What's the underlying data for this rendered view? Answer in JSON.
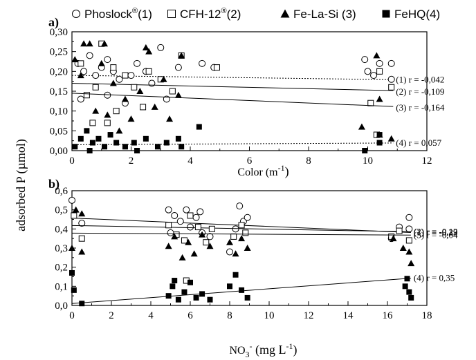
{
  "legend": [
    {
      "label": "Phoslock",
      "sup": "®",
      "suffix": "(1)",
      "marker": "circle-open"
    },
    {
      "label": "CFH-12",
      "sup": "®",
      "suffix": "(2)",
      "marker": "square-open"
    },
    {
      "label": "Fe-La-Si",
      "sup": "",
      "suffix": " (3)",
      "marker": "triangle-filled"
    },
    {
      "label": "FeHQ",
      "sup": "",
      "suffix": "(4)",
      "marker": "square-filled"
    }
  ],
  "ylabel": "adsorbed P (µmol)",
  "chart_data": [
    {
      "panel": "a)",
      "type": "scatter",
      "xlabel": "Color (m",
      "xlabel_sup": "-1",
      "xlabel_end": ")",
      "xlim": [
        0,
        12
      ],
      "ylim": [
        0,
        0.3
      ],
      "xticks": [
        "0",
        "2",
        "4",
        "6",
        "8",
        "10",
        "12"
      ],
      "yticks": [
        "0,00",
        "0,05",
        "0,10",
        "0,15",
        "0,20",
        "0,25",
        "0,30"
      ],
      "series": [
        {
          "name": "Phoslock®(1)",
          "points": [
            [
              0.2,
              0.22
            ],
            [
              0.4,
              0.2
            ],
            [
              0.6,
              0.24
            ],
            [
              0.8,
              0.19
            ],
            [
              1.0,
              0.21
            ],
            [
              1.2,
              0.23
            ],
            [
              1.4,
              0.2
            ],
            [
              1.6,
              0.18
            ],
            [
              1.8,
              0.12
            ],
            [
              2.0,
              0.19
            ],
            [
              2.2,
              0.22
            ],
            [
              2.5,
              0.2
            ],
            [
              2.7,
              0.17
            ],
            [
              3.0,
              0.26
            ],
            [
              3.2,
              0.13
            ],
            [
              3.6,
              0.21
            ],
            [
              4.4,
              0.22
            ],
            [
              4.8,
              0.21
            ],
            [
              9.9,
              0.23
            ],
            [
              10.0,
              0.2
            ],
            [
              10.2,
              0.19
            ],
            [
              10.4,
              0.22
            ],
            [
              10.8,
              0.22
            ],
            [
              10.8,
              0.18
            ],
            [
              0.3,
              0.13
            ],
            [
              1.2,
              0.14
            ]
          ],
          "fit": {
            "slope": -0.001,
            "intercept": 0.19,
            "dashed": true
          },
          "r_label": "(1) r = -0,042"
        },
        {
          "name": "CFH-12®(2)",
          "points": [
            [
              0.3,
              0.22
            ],
            [
              0.5,
              0.14
            ],
            [
              0.8,
              0.16
            ],
            [
              1.0,
              0.27
            ],
            [
              1.2,
              0.07
            ],
            [
              1.5,
              0.1
            ],
            [
              1.8,
              0.19
            ],
            [
              2.1,
              0.16
            ],
            [
              2.4,
              0.11
            ],
            [
              2.6,
              0.2
            ],
            [
              3.0,
              0.18
            ],
            [
              3.4,
              0.15
            ],
            [
              3.7,
              0.24
            ],
            [
              4.9,
              0.21
            ],
            [
              10.1,
              0.12
            ],
            [
              10.3,
              0.04
            ],
            [
              10.4,
              0.2
            ],
            [
              10.8,
              0.16
            ],
            [
              0.7,
              0.07
            ],
            [
              1.4,
              0.21
            ]
          ],
          "fit": {
            "slope": -0.0017,
            "intercept": 0.17
          },
          "r_label": "(2) r = -0,109"
        },
        {
          "name": "Fe-La-Si (3)",
          "points": [
            [
              0.1,
              0.23
            ],
            [
              0.3,
              0.19
            ],
            [
              0.6,
              0.27
            ],
            [
              0.8,
              0.1
            ],
            [
              1.0,
              0.22
            ],
            [
              1.2,
              0.09
            ],
            [
              1.4,
              0.17
            ],
            [
              1.6,
              0.05
            ],
            [
              1.8,
              0.13
            ],
            [
              2.0,
              0.08
            ],
            [
              2.3,
              0.15
            ],
            [
              2.5,
              0.26
            ],
            [
              2.8,
              0.11
            ],
            [
              3.1,
              0.18
            ],
            [
              3.3,
              0.08
            ],
            [
              3.6,
              0.14
            ],
            [
              3.7,
              0.24
            ],
            [
              9.8,
              0.06
            ],
            [
              10.3,
              0.24
            ],
            [
              10.4,
              0.13
            ],
            [
              10.4,
              0.04
            ],
            [
              10.8,
              0.03
            ],
            [
              0.4,
              0.27
            ],
            [
              1.1,
              0.27
            ],
            [
              2.6,
              0.25
            ]
          ],
          "fit": {
            "slope": -0.0031,
            "intercept": 0.145
          },
          "r_label": "(3) r = -0,164"
        },
        {
          "name": "FeHQ(4)",
          "points": [
            [
              0.1,
              0.01
            ],
            [
              0.3,
              0.03
            ],
            [
              0.5,
              0.05
            ],
            [
              0.7,
              0.02
            ],
            [
              0.9,
              0.03
            ],
            [
              1.1,
              0.01
            ],
            [
              1.3,
              0.04
            ],
            [
              1.5,
              0.02
            ],
            [
              1.8,
              0.01
            ],
            [
              2.1,
              0.02
            ],
            [
              2.5,
              0.03
            ],
            [
              2.9,
              0.01
            ],
            [
              3.2,
              0.02
            ],
            [
              3.6,
              0.03
            ],
            [
              3.7,
              0.01
            ],
            [
              4.3,
              0.06
            ],
            [
              9.9,
              0.0
            ],
            [
              10.4,
              0.02
            ],
            [
              10.4,
              0.04
            ],
            [
              0.6,
              0.0
            ],
            [
              2.2,
              0.0
            ]
          ],
          "fit": {
            "slope": 0.0004,
            "intercept": 0.015,
            "dashed": true
          },
          "r_label": "(4) r = 0,057"
        }
      ]
    },
    {
      "panel": "b)",
      "type": "scatter",
      "xlabel": "NO",
      "xlabel_sub": "3",
      "xlabel_sup": "-",
      "xlabel_end": " (mg L",
      "xlabel_sup2": "-1",
      "xlabel_end2": ")",
      "xlim": [
        0,
        18
      ],
      "ylim": [
        0,
        0.6
      ],
      "xticks": [
        "0",
        "2",
        "4",
        "6",
        "8",
        "10",
        "12",
        "14",
        "16",
        "18"
      ],
      "yticks": [
        "0,0",
        "0,1",
        "0,2",
        "0,3",
        "0,4",
        "0,5",
        "0,6"
      ],
      "series": [
        {
          "name": "Phoslock®(1)",
          "points": [
            [
              0.0,
              0.55
            ],
            [
              0.5,
              0.43
            ],
            [
              4.9,
              0.5
            ],
            [
              5.2,
              0.47
            ],
            [
              5.5,
              0.44
            ],
            [
              5.8,
              0.5
            ],
            [
              6.0,
              0.41
            ],
            [
              6.3,
              0.46
            ],
            [
              6.6,
              0.38
            ],
            [
              7.0,
              0.36
            ],
            [
              8.0,
              0.28
            ],
            [
              8.3,
              0.4
            ],
            [
              8.5,
              0.52
            ],
            [
              8.7,
              0.44
            ],
            [
              8.9,
              0.46
            ],
            [
              16.2,
              0.35
            ],
            [
              16.6,
              0.41
            ],
            [
              17.1,
              0.46
            ],
            [
              17.1,
              0.4
            ],
            [
              5.0,
              0.38
            ],
            [
              6.5,
              0.49
            ]
          ],
          "fit": {
            "slope": -0.0044,
            "intercept": 0.457
          },
          "r_label": "(1) r = -0,29"
        },
        {
          "name": "CFH-12®(2)",
          "points": [
            [
              0.1,
              0.47
            ],
            [
              0.5,
              0.35
            ],
            [
              4.9,
              0.42
            ],
            [
              5.3,
              0.37
            ],
            [
              5.7,
              0.34
            ],
            [
              6.0,
              0.47
            ],
            [
              6.4,
              0.41
            ],
            [
              6.8,
              0.33
            ],
            [
              7.1,
              0.4
            ],
            [
              8.2,
              0.36
            ],
            [
              8.6,
              0.42
            ],
            [
              8.8,
              0.38
            ],
            [
              16.2,
              0.36
            ],
            [
              16.6,
              0.39
            ],
            [
              17.1,
              0.34
            ],
            [
              5.8,
              0.13
            ]
          ],
          "fit": {
            "slope": -0.0019,
            "intercept": 0.418
          },
          "r_label": "(2) r = -0,12"
        },
        {
          "name": "Fe-La-Si (3)",
          "points": [
            [
              0.0,
              0.3
            ],
            [
              0.5,
              0.28
            ],
            [
              4.9,
              0.31
            ],
            [
              5.2,
              0.36
            ],
            [
              5.6,
              0.25
            ],
            [
              5.9,
              0.33
            ],
            [
              6.2,
              0.27
            ],
            [
              6.6,
              0.37
            ],
            [
              7.0,
              0.31
            ],
            [
              8.0,
              0.33
            ],
            [
              8.3,
              0.27
            ],
            [
              8.6,
              0.35
            ],
            [
              8.9,
              0.3
            ],
            [
              16.3,
              0.35
            ],
            [
              16.8,
              0.3
            ],
            [
              17.1,
              0.28
            ],
            [
              17.2,
              0.22
            ],
            [
              0.2,
              0.5
            ],
            [
              0.5,
              0.48
            ]
          ],
          "fit": {
            "slope": -0.0006,
            "intercept": 0.378
          },
          "r_label": "(3) r = -0,04"
        },
        {
          "name": "FeHQ(4)",
          "points": [
            [
              0.0,
              0.17
            ],
            [
              0.1,
              0.08
            ],
            [
              0.5,
              0.01
            ],
            [
              4.9,
              0.05
            ],
            [
              5.1,
              0.1
            ],
            [
              5.4,
              0.03
            ],
            [
              5.7,
              0.07
            ],
            [
              6.0,
              0.12
            ],
            [
              6.3,
              0.04
            ],
            [
              6.6,
              0.06
            ],
            [
              7.0,
              0.03
            ],
            [
              8.0,
              0.1
            ],
            [
              8.3,
              0.16
            ],
            [
              8.6,
              0.08
            ],
            [
              8.9,
              0.04
            ],
            [
              16.9,
              0.1
            ],
            [
              17.0,
              0.14
            ],
            [
              17.1,
              0.07
            ],
            [
              17.2,
              0.04
            ],
            [
              5.2,
              0.13
            ]
          ],
          "fit": {
            "slope": 0.0077,
            "intercept": 0.01
          },
          "r_label": "(4) r = 0,35"
        }
      ]
    }
  ]
}
